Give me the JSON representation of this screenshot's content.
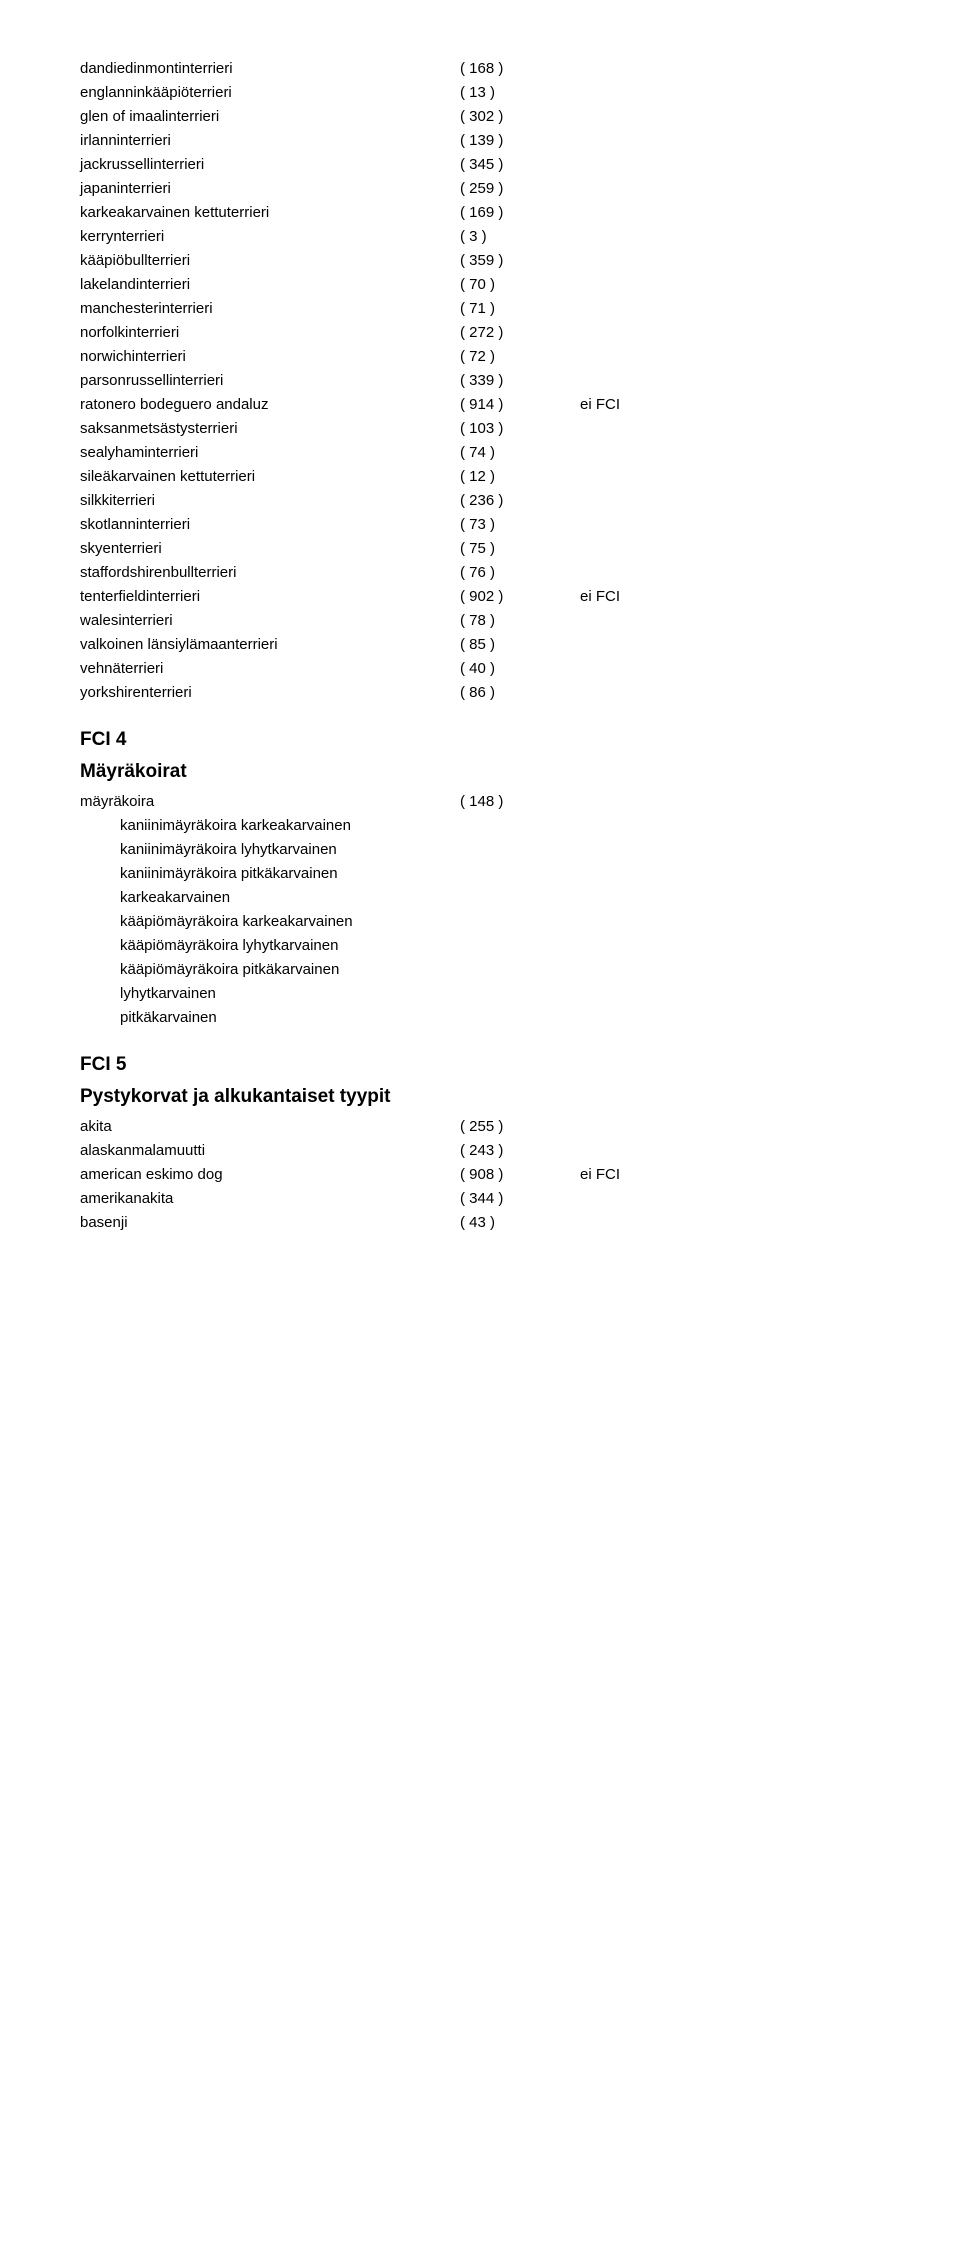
{
  "list1": [
    {
      "name": "dandiedinmontinterrieri",
      "num": "( 168 )",
      "note": ""
    },
    {
      "name": "englanninkääpiöterrieri",
      "num": "( 13 )",
      "note": ""
    },
    {
      "name": "glen of imaalinterrieri",
      "num": "( 302 )",
      "note": ""
    },
    {
      "name": "irlanninterrieri",
      "num": "( 139 )",
      "note": ""
    },
    {
      "name": "jackrussellinterrieri",
      "num": "( 345 )",
      "note": ""
    },
    {
      "name": "japaninterrieri",
      "num": "( 259 )",
      "note": ""
    },
    {
      "name": "karkeakarvainen kettuterrieri",
      "num": "( 169 )",
      "note": ""
    },
    {
      "name": "kerrynterrieri",
      "num": "( 3 )",
      "note": ""
    },
    {
      "name": "kääpiöbullterrieri",
      "num": "( 359 )",
      "note": ""
    },
    {
      "name": "lakelandinterrieri",
      "num": "( 70 )",
      "note": ""
    },
    {
      "name": "manchesterinterrieri",
      "num": "( 71 )",
      "note": ""
    },
    {
      "name": "norfolkinterrieri",
      "num": "( 272 )",
      "note": ""
    },
    {
      "name": "norwichinterrieri",
      "num": "( 72 )",
      "note": ""
    },
    {
      "name": "parsonrussellinterrieri",
      "num": "( 339 )",
      "note": ""
    },
    {
      "name": "ratonero bodeguero andaluz",
      "num": "( 914 )",
      "note": "ei FCI"
    },
    {
      "name": "saksanmetsästysterrieri",
      "num": "( 103 )",
      "note": ""
    },
    {
      "name": "sealyhaminterrieri",
      "num": "( 74 )",
      "note": ""
    },
    {
      "name": "sileäkarvainen kettuterrieri",
      "num": "( 12 )",
      "note": ""
    },
    {
      "name": "silkkiterrieri",
      "num": "( 236 )",
      "note": ""
    },
    {
      "name": "skotlanninterrieri",
      "num": "( 73 )",
      "note": ""
    },
    {
      "name": "skyenterrieri",
      "num": "( 75 )",
      "note": ""
    },
    {
      "name": "staffordshirenbullterrieri",
      "num": "( 76 )",
      "note": ""
    },
    {
      "name": "tenterfieldinterrieri",
      "num": "( 902 )",
      "note": "ei FCI"
    },
    {
      "name": "walesinterrieri",
      "num": "( 78 )",
      "note": ""
    },
    {
      "name": "valkoinen länsiylämaanterrieri",
      "num": "( 85 )",
      "note": ""
    },
    {
      "name": "vehnäterrieri",
      "num": "( 40 )",
      "note": ""
    },
    {
      "name": "yorkshirenterrieri",
      "num": "( 86 )",
      "note": ""
    }
  ],
  "section4": {
    "heading": "FCI 4",
    "sub": "Mäyräkoirat",
    "main": {
      "name": "mäyräkoira",
      "num": "( 148 )",
      "note": ""
    },
    "subs": [
      "kaniinimäyräkoira karkeakarvainen",
      "kaniinimäyräkoira lyhytkarvainen",
      "kaniinimäyräkoira pitkäkarvainen",
      "karkeakarvainen",
      "kääpiömäyräkoira karkeakarvainen",
      "kääpiömäyräkoira lyhytkarvainen",
      "kääpiömäyräkoira pitkäkarvainen",
      "lyhytkarvainen",
      "pitkäkarvainen"
    ]
  },
  "section5": {
    "heading": "FCI 5",
    "sub": "Pystykorvat ja alkukantaiset tyypit",
    "list": [
      {
        "name": "akita",
        "num": "( 255 )",
        "note": ""
      },
      {
        "name": "alaskanmalamuutti",
        "num": "( 243 )",
        "note": ""
      },
      {
        "name": "american eskimo dog",
        "num": "( 908 )",
        "note": "ei FCI"
      },
      {
        "name": "amerikanakita",
        "num": "( 344 )",
        "note": ""
      },
      {
        "name": "basenji",
        "num": "( 43 )",
        "note": ""
      }
    ]
  }
}
